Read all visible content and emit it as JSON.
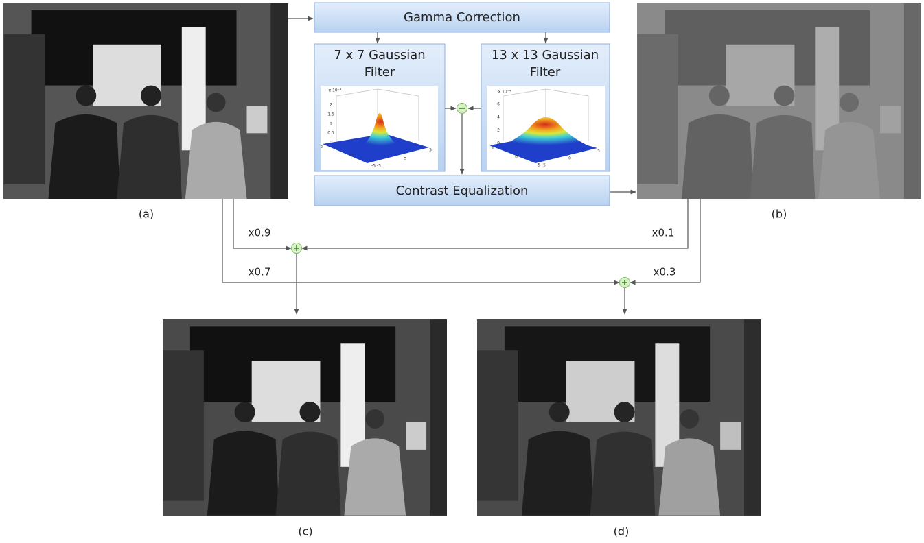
{
  "blocks": {
    "gamma": "Gamma Correction",
    "filter_small": {
      "lines": [
        "7 x 7  Gaussian",
        "Filter"
      ]
    },
    "filter_large": {
      "lines": [
        "13 x 13  Gaussian",
        "Filter"
      ]
    },
    "contrast": "Contrast Equalization"
  },
  "plots": [
    {
      "scale": "x 10⁻³",
      "zticks": [
        "2",
        "1.5",
        "1",
        "0.5",
        "0"
      ],
      "baseticks": [
        "5",
        "0",
        "-5 -5",
        "0",
        "5"
      ]
    },
    {
      "scale": "x 10⁻⁴",
      "zticks": [
        "6",
        "4",
        "2",
        "0"
      ],
      "baseticks": [
        "5",
        "0",
        "-5 -5",
        "0",
        "5"
      ]
    }
  ],
  "images": [
    {
      "label": "(a)"
    },
    {
      "label": "(b)"
    },
    {
      "label": "(c)"
    },
    {
      "label": "(d)"
    }
  ],
  "weights": [
    "x0.9",
    "x0.1",
    "x0.7",
    "x0.3"
  ]
}
